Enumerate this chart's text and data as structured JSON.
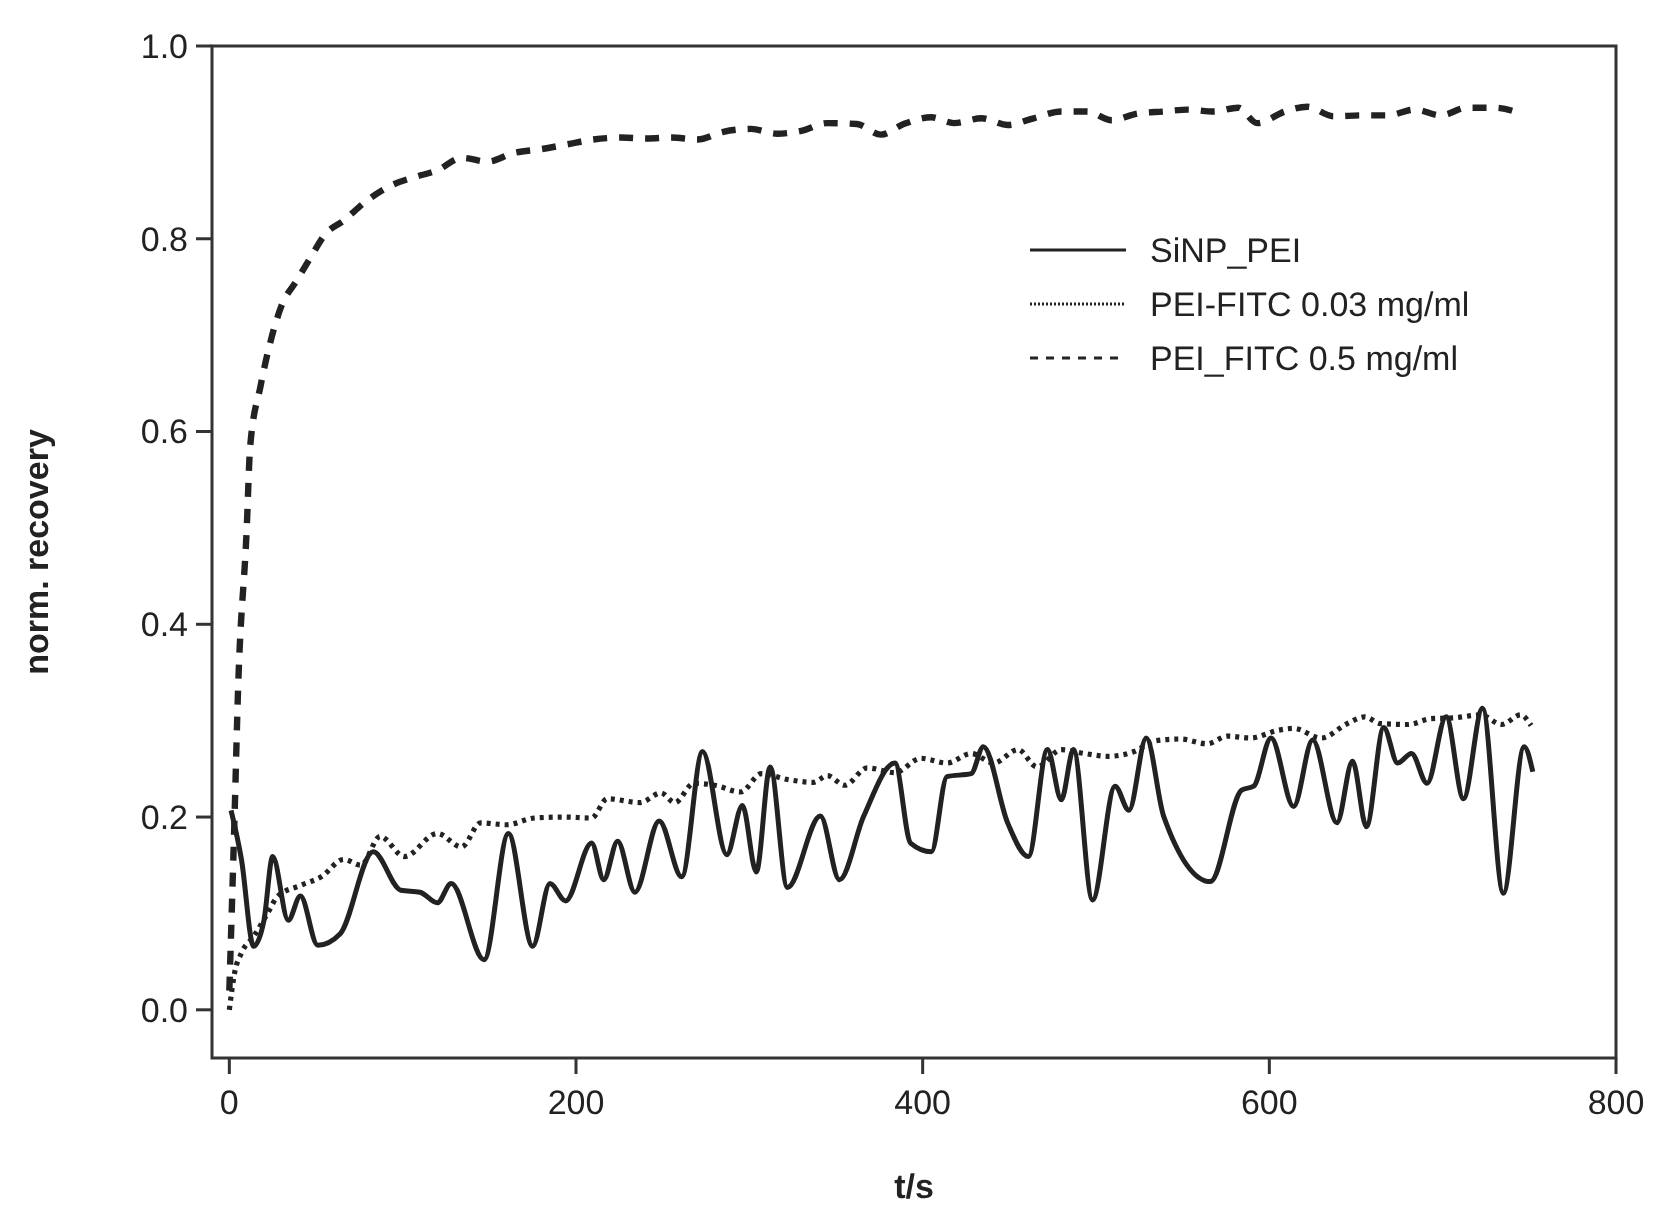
{
  "chart_data": {
    "type": "line",
    "xlabel": "t/s",
    "ylabel": "norm. recovery",
    "xlim": [
      -10,
      800
    ],
    "xticks": [
      0,
      200,
      400,
      600,
      800
    ],
    "ylim": [
      -0.05,
      1.0
    ],
    "yticks": [
      {
        "value": 0,
        "label": "0.0"
      },
      {
        "value": 0.2,
        "label": "0.2"
      },
      {
        "value": 0.4,
        "label": "0.4"
      },
      {
        "value": 0.6,
        "label": "0.6"
      },
      {
        "value": 0.8,
        "label": "0.8"
      },
      {
        "value": 1,
        "label": "1.0"
      }
    ],
    "grid": false,
    "legend": "right",
    "marker": "none",
    "series": [
      {
        "name": "SiNP_PEI",
        "color": "#222222",
        "line_style": "solid",
        "x": [
          1,
          7,
          14,
          20,
          25,
          34,
          41,
          51,
          64,
          83,
          99,
          110,
          120,
          128,
          147,
          161,
          175,
          185,
          194,
          209,
          216,
          224,
          234,
          248,
          261,
          273,
          287,
          296,
          304,
          312,
          322,
          341,
          352,
          366,
          384,
          393,
          405,
          414,
          428,
          435,
          449,
          461,
          472,
          480,
          487,
          498,
          511,
          519,
          529,
          539,
          566,
          584,
          591,
          601,
          614,
          625,
          639,
          648,
          656,
          666,
          674,
          682,
          691,
          702,
          712,
          723,
          735,
          747,
          752
        ],
        "values": [
          0.207,
          0.156,
          0.066,
          0.093,
          0.159,
          0.093,
          0.118,
          0.067,
          0.079,
          0.164,
          0.124,
          0.122,
          0.111,
          0.131,
          0.052,
          0.183,
          0.066,
          0.131,
          0.113,
          0.173,
          0.135,
          0.175,
          0.122,
          0.196,
          0.138,
          0.268,
          0.161,
          0.212,
          0.143,
          0.252,
          0.127,
          0.201,
          0.135,
          0.201,
          0.256,
          0.173,
          0.164,
          0.242,
          0.245,
          0.273,
          0.194,
          0.159,
          0.27,
          0.218,
          0.27,
          0.114,
          0.232,
          0.207,
          0.282,
          0.201,
          0.133,
          0.228,
          0.232,
          0.282,
          0.211,
          0.28,
          0.194,
          0.258,
          0.19,
          0.293,
          0.256,
          0.266,
          0.235,
          0.304,
          0.219,
          0.313,
          0.121,
          0.273,
          0.247
        ]
      },
      {
        "name": "PEI-FITC 0.03 mg/ml",
        "color": "#222222",
        "line_style": "dotted",
        "x": [
          0,
          3,
          7,
          14,
          22,
          28,
          41,
          53,
          66,
          76,
          87,
          101,
          120,
          134,
          145,
          160,
          176,
          193,
          209,
          218,
          237,
          249,
          257,
          268,
          280,
          295,
          307,
          322,
          337,
          345,
          355,
          368,
          384,
          399,
          403,
          414,
          428,
          441,
          455,
          466,
          480,
          493,
          507,
          522,
          534,
          549,
          564,
          576,
          589,
          605,
          614,
          630,
          645,
          655,
          664,
          680,
          693,
          707,
          722,
          734,
          745,
          751
        ],
        "values": [
          0.0,
          0.038,
          0.059,
          0.076,
          0.1,
          0.118,
          0.129,
          0.138,
          0.156,
          0.15,
          0.18,
          0.159,
          0.183,
          0.169,
          0.194,
          0.192,
          0.199,
          0.2,
          0.199,
          0.219,
          0.215,
          0.225,
          0.215,
          0.235,
          0.233,
          0.226,
          0.245,
          0.239,
          0.236,
          0.243,
          0.233,
          0.251,
          0.246,
          0.261,
          0.26,
          0.256,
          0.266,
          0.256,
          0.27,
          0.252,
          0.27,
          0.266,
          0.263,
          0.268,
          0.279,
          0.281,
          0.276,
          0.284,
          0.282,
          0.29,
          0.292,
          0.282,
          0.297,
          0.304,
          0.297,
          0.296,
          0.302,
          0.303,
          0.306,
          0.296,
          0.306,
          0.295
        ]
      },
      {
        "name": "PEI_FITC 0.5 mg/ml",
        "color": "#222222",
        "line_style": "dashed",
        "x": [
          0,
          3,
          5,
          10,
          12,
          18,
          24,
          30,
          39,
          47,
          55,
          66,
          79,
          93,
          107,
          120,
          134,
          149,
          164,
          180,
          195,
          210,
          226,
          241,
          255,
          270,
          285,
          301,
          316,
          330,
          345,
          362,
          376,
          389,
          405,
          418,
          434,
          449,
          464,
          480,
          495,
          509,
          524,
          539,
          553,
          568,
          582,
          593,
          609,
          622,
          637,
          653,
          668,
          684,
          699,
          714,
          730,
          745
        ],
        "values": [
          0.02,
          0.2,
          0.33,
          0.498,
          0.584,
          0.647,
          0.695,
          0.73,
          0.757,
          0.781,
          0.804,
          0.819,
          0.839,
          0.855,
          0.864,
          0.871,
          0.884,
          0.88,
          0.889,
          0.893,
          0.898,
          0.903,
          0.905,
          0.904,
          0.905,
          0.903,
          0.911,
          0.914,
          0.909,
          0.912,
          0.92,
          0.919,
          0.908,
          0.919,
          0.926,
          0.92,
          0.925,
          0.918,
          0.925,
          0.932,
          0.932,
          0.923,
          0.93,
          0.932,
          0.934,
          0.932,
          0.936,
          0.92,
          0.932,
          0.937,
          0.927,
          0.928,
          0.928,
          0.934,
          0.928,
          0.936,
          0.936,
          0.93
        ]
      }
    ]
  }
}
